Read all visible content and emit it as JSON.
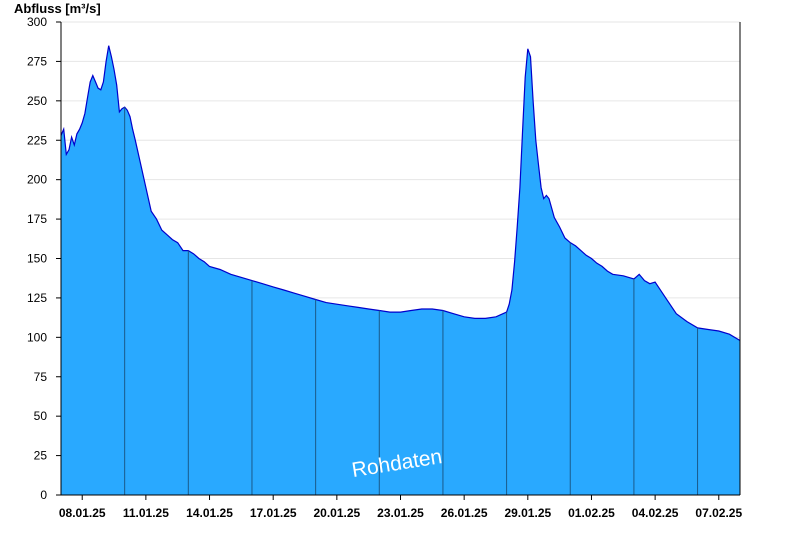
{
  "chart_data": {
    "type": "area",
    "ylabel": "Abfluss [m³/s]",
    "ylim": [
      0,
      300
    ],
    "yticks": [
      0,
      25,
      50,
      75,
      100,
      125,
      150,
      175,
      200,
      225,
      250,
      275,
      300
    ],
    "xlim": [
      "2025-01-07T00:00",
      "2025-02-08T00:00"
    ],
    "xtick_labels": [
      {
        "date": "2025-01-08",
        "label": "08.01.25"
      },
      {
        "date": "2025-01-11",
        "label": "11.01.25"
      },
      {
        "date": "2025-01-14",
        "label": "14.01.25"
      },
      {
        "date": "2025-01-17",
        "label": "17.01.25"
      },
      {
        "date": "2025-01-20",
        "label": "20.01.25"
      },
      {
        "date": "2025-01-23",
        "label": "23.01.25"
      },
      {
        "date": "2025-01-26",
        "label": "26.01.25"
      },
      {
        "date": "2025-01-29",
        "label": "29.01.25"
      },
      {
        "date": "2025-02-01",
        "label": "01.02.25"
      },
      {
        "date": "2025-02-04",
        "label": "04.02.25"
      },
      {
        "date": "2025-02-07",
        "label": "07.02.25"
      }
    ],
    "vertical_grid_dates": [
      "2025-01-10",
      "2025-01-13",
      "2025-01-16",
      "2025-01-19",
      "2025-01-22",
      "2025-01-25",
      "2025-01-28",
      "2025-01-31",
      "2025-02-03",
      "2025-02-06"
    ],
    "grid": true,
    "colors": {
      "fill": "#29a9ff",
      "line": "#0000cc",
      "grid": "#e6e6e6",
      "vgrid": "#1a5a8a"
    },
    "annotation": "Rohdaten",
    "series": [
      {
        "x": [
          "2025-01-07T00:00",
          "2025-01-07T03:00",
          "2025-01-07T06:00",
          "2025-01-07T09:00",
          "2025-01-07T12:00",
          "2025-01-07T15:00",
          "2025-01-07T18:00",
          "2025-01-07T21:00",
          "2025-01-08T00:00",
          "2025-01-08T03:00",
          "2025-01-08T06:00",
          "2025-01-08T09:00",
          "2025-01-08T12:00",
          "2025-01-08T15:00",
          "2025-01-08T18:00",
          "2025-01-08T21:00",
          "2025-01-09T00:00",
          "2025-01-09T03:00",
          "2025-01-09T06:00",
          "2025-01-09T09:00",
          "2025-01-09T12:00",
          "2025-01-09T15:00",
          "2025-01-09T18:00",
          "2025-01-09T21:00",
          "2025-01-10T00:00",
          "2025-01-10T03:00",
          "2025-01-10T06:00",
          "2025-01-10T09:00",
          "2025-01-10T12:00",
          "2025-01-10T18:00",
          "2025-01-11T00:00",
          "2025-01-11T06:00",
          "2025-01-11T12:00",
          "2025-01-11T18:00",
          "2025-01-12T00:00",
          "2025-01-12T06:00",
          "2025-01-12T12:00",
          "2025-01-12T18:00",
          "2025-01-13T00:00",
          "2025-01-13T06:00",
          "2025-01-13T12:00",
          "2025-01-13T18:00",
          "2025-01-14T00:00",
          "2025-01-14T12:00",
          "2025-01-15T00:00",
          "2025-01-15T12:00",
          "2025-01-16T00:00",
          "2025-01-16T12:00",
          "2025-01-17T00:00",
          "2025-01-17T12:00",
          "2025-01-18T00:00",
          "2025-01-18T12:00",
          "2025-01-19T00:00",
          "2025-01-19T12:00",
          "2025-01-20T00:00",
          "2025-01-20T12:00",
          "2025-01-21T00:00",
          "2025-01-21T12:00",
          "2025-01-22T00:00",
          "2025-01-22T12:00",
          "2025-01-23T00:00",
          "2025-01-23T12:00",
          "2025-01-24T00:00",
          "2025-01-24T12:00",
          "2025-01-25T00:00",
          "2025-01-25T12:00",
          "2025-01-26T00:00",
          "2025-01-26T12:00",
          "2025-01-27T00:00",
          "2025-01-27T12:00",
          "2025-01-28T00:00",
          "2025-01-28T03:00",
          "2025-01-28T06:00",
          "2025-01-28T09:00",
          "2025-01-28T12:00",
          "2025-01-28T15:00",
          "2025-01-28T18:00",
          "2025-01-28T21:00",
          "2025-01-29T00:00",
          "2025-01-29T03:00",
          "2025-01-29T06:00",
          "2025-01-29T09:00",
          "2025-01-29T12:00",
          "2025-01-29T15:00",
          "2025-01-29T18:00",
          "2025-01-29T21:00",
          "2025-01-30T00:00",
          "2025-01-30T06:00",
          "2025-01-30T12:00",
          "2025-01-30T18:00",
          "2025-01-31T00:00",
          "2025-01-31T06:00",
          "2025-01-31T12:00",
          "2025-01-31T18:00",
          "2025-02-01T00:00",
          "2025-02-01T06:00",
          "2025-02-01T12:00",
          "2025-02-01T18:00",
          "2025-02-02T00:00",
          "2025-02-02T12:00",
          "2025-02-03T00:00",
          "2025-02-03T06:00",
          "2025-02-03T12:00",
          "2025-02-03T18:00",
          "2025-02-04T00:00",
          "2025-02-04T12:00",
          "2025-02-05T00:00",
          "2025-02-05T12:00",
          "2025-02-06T00:00",
          "2025-02-06T12:00",
          "2025-02-07T00:00",
          "2025-02-07T12:00",
          "2025-02-08T00:00"
        ],
        "y": [
          228,
          232,
          216,
          219,
          227,
          222,
          229,
          232,
          236,
          242,
          252,
          262,
          266,
          262,
          258,
          257,
          262,
          275,
          285,
          278,
          270,
          260,
          243,
          245,
          246,
          244,
          240,
          232,
          225,
          210,
          195,
          180,
          175,
          168,
          165,
          162,
          160,
          155,
          155,
          153,
          150,
          148,
          145,
          143,
          140,
          138,
          136,
          134,
          132,
          130,
          128,
          126,
          124,
          122,
          121,
          120,
          119,
          118,
          117,
          116,
          116,
          117,
          118,
          118,
          117,
          115,
          113,
          112,
          112,
          113,
          116,
          121,
          130,
          148,
          170,
          195,
          230,
          265,
          283,
          278,
          250,
          225,
          210,
          195,
          188,
          190,
          188,
          176,
          170,
          163,
          160,
          158,
          155,
          152,
          150,
          147,
          145,
          142,
          140,
          139,
          137,
          140,
          136,
          134,
          135,
          125,
          115,
          110,
          106,
          105,
          104,
          102,
          98
        ]
      }
    ]
  }
}
